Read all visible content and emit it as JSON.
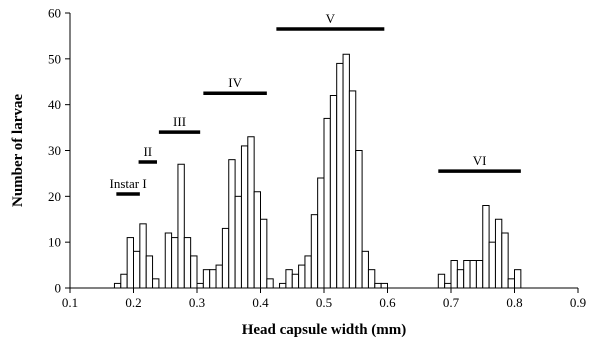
{
  "chart_data": {
    "type": "bar",
    "xlabel": "Head capsule width (mm)",
    "ylabel": "Number of larvae",
    "xlim": [
      0.1,
      0.9
    ],
    "ylim": [
      0,
      60
    ],
    "x_ticks": [
      0.1,
      0.2,
      0.3,
      0.4,
      0.5,
      0.6,
      0.7,
      0.8,
      0.9
    ],
    "x_tick_labels": [
      "0.1",
      "0.2",
      "0.3",
      "0.4",
      "0.5",
      "0.6",
      "0.7",
      "0.8",
      "0.9"
    ],
    "y_ticks": [
      0,
      10,
      20,
      30,
      40,
      50,
      60
    ],
    "y_tick_labels": [
      "0",
      "10",
      "20",
      "30",
      "40",
      "50",
      "60"
    ],
    "bin_width": 0.01,
    "bins": [
      {
        "x": 0.175,
        "y": 1
      },
      {
        "x": 0.185,
        "y": 3
      },
      {
        "x": 0.195,
        "y": 11
      },
      {
        "x": 0.205,
        "y": 8
      },
      {
        "x": 0.215,
        "y": 14
      },
      {
        "x": 0.225,
        "y": 7
      },
      {
        "x": 0.235,
        "y": 2
      },
      {
        "x": 0.245,
        "y": 0
      },
      {
        "x": 0.255,
        "y": 12
      },
      {
        "x": 0.265,
        "y": 11
      },
      {
        "x": 0.275,
        "y": 27
      },
      {
        "x": 0.285,
        "y": 11
      },
      {
        "x": 0.295,
        "y": 7
      },
      {
        "x": 0.305,
        "y": 1
      },
      {
        "x": 0.315,
        "y": 4
      },
      {
        "x": 0.325,
        "y": 4
      },
      {
        "x": 0.335,
        "y": 5
      },
      {
        "x": 0.345,
        "y": 13
      },
      {
        "x": 0.355,
        "y": 28
      },
      {
        "x": 0.365,
        "y": 20
      },
      {
        "x": 0.375,
        "y": 31
      },
      {
        "x": 0.385,
        "y": 33
      },
      {
        "x": 0.395,
        "y": 21
      },
      {
        "x": 0.405,
        "y": 15
      },
      {
        "x": 0.415,
        "y": 2
      },
      {
        "x": 0.425,
        "y": 0
      },
      {
        "x": 0.435,
        "y": 1
      },
      {
        "x": 0.445,
        "y": 4
      },
      {
        "x": 0.455,
        "y": 3
      },
      {
        "x": 0.465,
        "y": 5
      },
      {
        "x": 0.475,
        "y": 7
      },
      {
        "x": 0.485,
        "y": 16
      },
      {
        "x": 0.495,
        "y": 24
      },
      {
        "x": 0.505,
        "y": 37
      },
      {
        "x": 0.515,
        "y": 42
      },
      {
        "x": 0.525,
        "y": 49
      },
      {
        "x": 0.535,
        "y": 51
      },
      {
        "x": 0.545,
        "y": 43
      },
      {
        "x": 0.555,
        "y": 30
      },
      {
        "x": 0.565,
        "y": 8
      },
      {
        "x": 0.575,
        "y": 4
      },
      {
        "x": 0.585,
        "y": 1
      },
      {
        "x": 0.595,
        "y": 1
      },
      {
        "x": 0.685,
        "y": 3
      },
      {
        "x": 0.695,
        "y": 1
      },
      {
        "x": 0.705,
        "y": 6
      },
      {
        "x": 0.715,
        "y": 4
      },
      {
        "x": 0.725,
        "y": 6
      },
      {
        "x": 0.735,
        "y": 6
      },
      {
        "x": 0.745,
        "y": 6
      },
      {
        "x": 0.755,
        "y": 18
      },
      {
        "x": 0.765,
        "y": 10
      },
      {
        "x": 0.775,
        "y": 15
      },
      {
        "x": 0.785,
        "y": 12
      },
      {
        "x": 0.795,
        "y": 2
      },
      {
        "x": 0.805,
        "y": 4
      }
    ],
    "annotations": [
      {
        "label": "Instar I",
        "x_start": 0.173,
        "x_end": 0.21,
        "y": 20.5
      },
      {
        "label": "II",
        "x_start": 0.208,
        "x_end": 0.237,
        "y": 27.5
      },
      {
        "label": "III",
        "x_start": 0.24,
        "x_end": 0.305,
        "y": 34
      },
      {
        "label": "IV",
        "x_start": 0.31,
        "x_end": 0.41,
        "y": 42.5
      },
      {
        "label": "V",
        "x_start": 0.425,
        "x_end": 0.595,
        "y": 56.5
      },
      {
        "label": "VI",
        "x_start": 0.68,
        "x_end": 0.81,
        "y": 25.5
      }
    ],
    "grid": false,
    "colors": {
      "bar_fill": "#ffffff",
      "bar_stroke": "#000000",
      "annotation_bar": "#000000"
    }
  }
}
